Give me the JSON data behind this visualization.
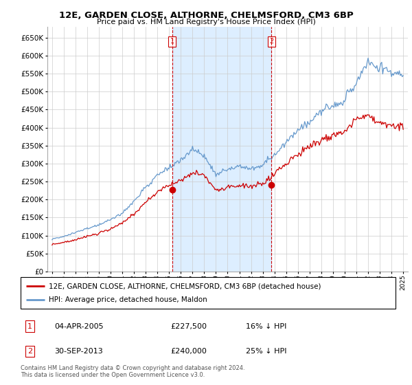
{
  "title": "12E, GARDEN CLOSE, ALTHORNE, CHELMSFORD, CM3 6BP",
  "subtitle": "Price paid vs. HM Land Registry's House Price Index (HPI)",
  "ylim": [
    0,
    680000
  ],
  "ytick_vals": [
    0,
    50000,
    100000,
    150000,
    200000,
    250000,
    300000,
    350000,
    400000,
    450000,
    500000,
    550000,
    600000,
    650000
  ],
  "legend_line1": "12E, GARDEN CLOSE, ALTHORNE, CHELMSFORD, CM3 6BP (detached house)",
  "legend_line2": "HPI: Average price, detached house, Maldon",
  "line1_color": "#cc0000",
  "line2_color": "#6699cc",
  "shade_color": "#ddeeff",
  "ann1_x": 2005.25,
  "ann2_x": 2013.75,
  "annotation1": {
    "label": "1",
    "date": "04-APR-2005",
    "price": "£227,500",
    "pct": "16% ↓ HPI",
    "y": 227500
  },
  "annotation2": {
    "label": "2",
    "date": "30-SEP-2013",
    "price": "£240,000",
    "pct": "25% ↓ HPI",
    "y": 240000
  },
  "footer1": "Contains HM Land Registry data © Crown copyright and database right 2024.",
  "footer2": "This data is licensed under the Open Government Licence v3.0.",
  "background_color": "#ffffff",
  "grid_color": "#cccccc",
  "xmin": 1995,
  "xmax": 2025
}
